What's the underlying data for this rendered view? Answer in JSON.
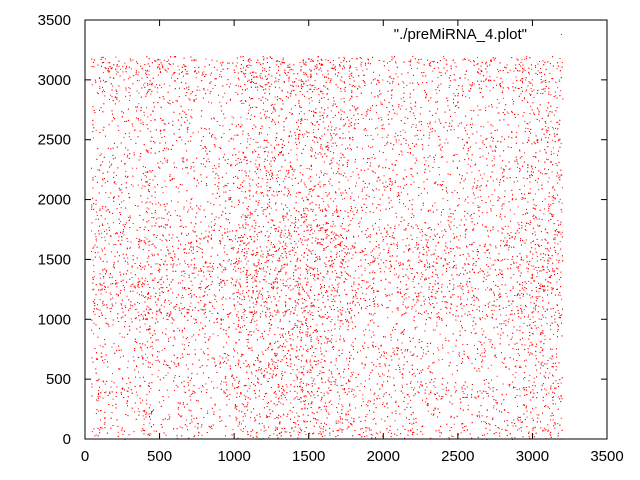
{
  "chart_data": {
    "type": "scatter",
    "title": "",
    "xlabel": "",
    "ylabel": "",
    "xlim": [
      0,
      3500
    ],
    "ylim": [
      0,
      3500
    ],
    "xticks": [
      0,
      500,
      1000,
      1500,
      2000,
      2500,
      3000,
      3500
    ],
    "yticks": [
      0,
      500,
      1000,
      1500,
      2000,
      2500,
      3000,
      3500
    ],
    "grid": false,
    "legend_position": "top-right",
    "series": [
      {
        "name": "\"./preMiRNA_4.plot\"",
        "color": "#ff0000",
        "marker": "dot",
        "description_of_extent": {
          "x_range": [
            40,
            3200
          ],
          "y_range": [
            0,
            3200
          ]
        },
        "points": [
          [
            60,
            3170
          ],
          [
            120,
            3150
          ],
          [
            210,
            3120
          ],
          [
            300,
            3180
          ],
          [
            380,
            3100
          ],
          [
            470,
            3160
          ],
          [
            560,
            3140
          ],
          [
            650,
            3110
          ],
          [
            740,
            3170
          ],
          [
            830,
            3130
          ],
          [
            920,
            3150
          ],
          [
            1010,
            3120
          ],
          [
            1100,
            3180
          ],
          [
            1190,
            3140
          ],
          [
            1280,
            3160
          ],
          [
            1370,
            3110
          ],
          [
            1460,
            3170
          ],
          [
            1550,
            3130
          ],
          [
            1640,
            3150
          ],
          [
            1730,
            3120
          ],
          [
            1820,
            3180
          ],
          [
            1910,
            3140
          ],
          [
            2000,
            3160
          ],
          [
            2090,
            3110
          ],
          [
            2180,
            3170
          ],
          [
            2270,
            3130
          ],
          [
            2360,
            3150
          ],
          [
            2450,
            3120
          ],
          [
            2540,
            3180
          ],
          [
            2630,
            3140
          ],
          [
            2720,
            3160
          ],
          [
            2810,
            3110
          ],
          [
            2900,
            3170
          ],
          [
            2990,
            3130
          ],
          [
            3080,
            3150
          ],
          [
            3170,
            3120
          ],
          [
            100,
            100
          ],
          [
            95,
            80
          ],
          [
            110,
            95
          ],
          [
            260,
            70
          ],
          [
            420,
            40
          ],
          [
            590,
            90
          ],
          [
            760,
            60
          ],
          [
            940,
            110
          ],
          [
            1120,
            80
          ],
          [
            1300,
            50
          ],
          [
            1480,
            100
          ],
          [
            1660,
            70
          ],
          [
            1840,
            40
          ],
          [
            2020,
            90
          ],
          [
            2200,
            60
          ],
          [
            2380,
            110
          ],
          [
            2560,
            80
          ],
          [
            2740,
            50
          ],
          [
            2920,
            100
          ],
          [
            3100,
            70
          ],
          [
            3180,
            120
          ]
        ]
      }
    ]
  }
}
